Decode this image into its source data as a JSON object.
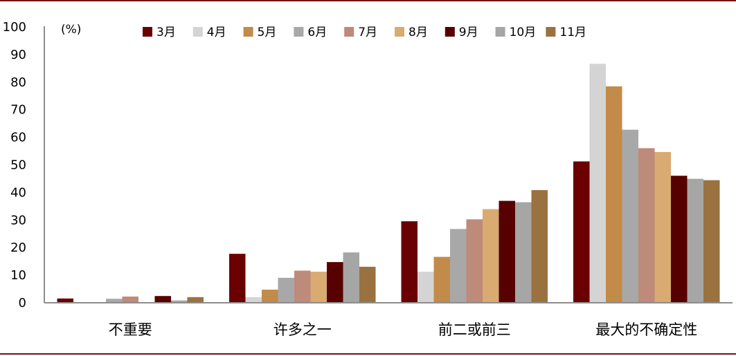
{
  "chart_data": {
    "type": "bar",
    "unit_label": "(%)",
    "ylim": [
      0,
      100
    ],
    "yticks": [
      0,
      10,
      20,
      30,
      40,
      50,
      60,
      70,
      80,
      90,
      100
    ],
    "categories": [
      "不重要",
      "许多之一",
      "前二或前三",
      "最大的不确定性"
    ],
    "legend_position": "top",
    "grid": false,
    "series": [
      {
        "name": "3月",
        "color": "#6b0000",
        "values": [
          1.3,
          17.5,
          29.3,
          51.0
        ]
      },
      {
        "name": "4月",
        "color": "#d4d4d4",
        "values": [
          0.0,
          1.8,
          11.0,
          86.4
        ]
      },
      {
        "name": "5月",
        "color": "#c28b49",
        "values": [
          0.0,
          4.5,
          16.4,
          78.2
        ]
      },
      {
        "name": "6月",
        "color": "#a8a8a8",
        "values": [
          1.2,
          8.8,
          26.5,
          62.5
        ]
      },
      {
        "name": "7月",
        "color": "#be8a7a",
        "values": [
          2.0,
          11.4,
          30.0,
          55.8
        ]
      },
      {
        "name": "8月",
        "color": "#d9aa71",
        "values": [
          0.0,
          11.0,
          33.7,
          54.4
        ]
      },
      {
        "name": "9月",
        "color": "#570000",
        "values": [
          2.2,
          14.5,
          36.7,
          45.8
        ]
      },
      {
        "name": "10月",
        "color": "#a6a6a6",
        "values": [
          0.6,
          18.0,
          36.2,
          44.7
        ]
      },
      {
        "name": "11月",
        "color": "#9a7240",
        "values": [
          1.8,
          12.8,
          40.6,
          44.2
        ]
      }
    ]
  }
}
